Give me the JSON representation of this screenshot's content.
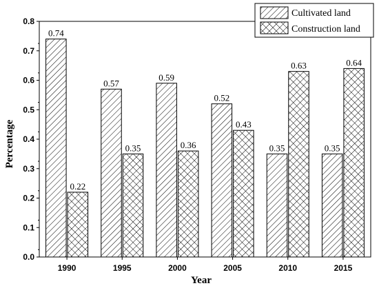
{
  "chart_data": {
    "type": "bar",
    "categories": [
      "1990",
      "1995",
      "2000",
      "2005",
      "2010",
      "2015"
    ],
    "series": [
      {
        "name": "Cultivated land",
        "values": [
          0.74,
          0.57,
          0.59,
          0.52,
          0.35,
          0.35
        ],
        "pattern": "diagonal-hatch"
      },
      {
        "name": "Construction land",
        "values": [
          0.22,
          0.35,
          0.36,
          0.43,
          0.63,
          0.64
        ],
        "pattern": "cross-hatch"
      }
    ],
    "data_labels": [
      [
        "0.74",
        "0.57",
        "0.59",
        "0.52",
        "0.35",
        "0.35"
      ],
      [
        "0.22",
        "0.35",
        "0.36",
        "0.43",
        "0.63",
        "0.64"
      ]
    ],
    "xlabel": "Year",
    "ylabel": "Percentage",
    "ylim": [
      0,
      0.8
    ],
    "yticks": [
      "0.0",
      "0.1",
      "0.2",
      "0.3",
      "0.4",
      "0.5",
      "0.6",
      "0.7",
      "0.8"
    ],
    "yticks_values": [
      0,
      0.1,
      0.2,
      0.3,
      0.4,
      0.5,
      0.6,
      0.7,
      0.8
    ],
    "grid": false,
    "legend_position": "top-right",
    "colors": {
      "bar_stroke": "#000000",
      "background": "#ffffff"
    }
  }
}
